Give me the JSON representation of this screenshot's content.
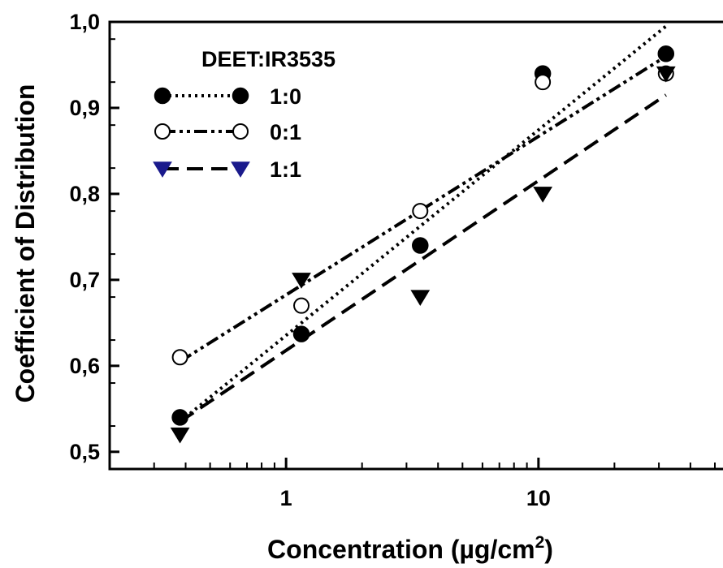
{
  "chart_data": {
    "type": "scatter",
    "xlabel": "Concentration (µg/cm",
    "xlabel_superscript": "2",
    "xlabel_suffix": ")",
    "ylabel": "Coefficient of Distribution",
    "xscale": "log",
    "xlim": [
      0.2,
      50
    ],
    "ylim": [
      0.48,
      1.0
    ],
    "x_tick_labels": [
      {
        "value": 1,
        "label": "1"
      },
      {
        "value": 10,
        "label": "10"
      }
    ],
    "y_tick_labels": [
      {
        "value": 0.5,
        "label": "0,5"
      },
      {
        "value": 0.6,
        "label": "0,6"
      },
      {
        "value": 0.7,
        "label": "0,7"
      },
      {
        "value": 0.8,
        "label": "0,8"
      },
      {
        "value": 0.9,
        "label": "0,9"
      },
      {
        "value": 1.0,
        "label": "1,0"
      }
    ],
    "grid": false,
    "legend": {
      "title": "DEET:IR3535",
      "placement": "top-left"
    },
    "series": [
      {
        "name": "1:0",
        "marker": "filled-circle",
        "line_style": "dotted",
        "color": "#000000",
        "x": [
          0.38,
          1.15,
          3.4,
          10.4,
          32
        ],
        "y": [
          0.54,
          0.637,
          0.74,
          0.94,
          0.963
        ],
        "fit": {
          "x": [
            0.38,
            32
          ],
          "y": [
            0.535,
            0.995
          ]
        }
      },
      {
        "name": "0:1",
        "marker": "open-circle",
        "line_style": "dash-dot-dot",
        "color": "#000000",
        "x": [
          0.38,
          1.15,
          3.4,
          10.4,
          32
        ],
        "y": [
          0.61,
          0.67,
          0.78,
          0.93,
          0.94
        ],
        "fit": {
          "x": [
            0.38,
            32
          ],
          "y": [
            0.605,
            0.96
          ]
        }
      },
      {
        "name": "1:1",
        "marker": "filled-triangle-down",
        "line_style": "dashed",
        "color": "#000000",
        "legend_marker_color": "#1a1a8c",
        "x": [
          0.38,
          1.15,
          3.4,
          10.4,
          32
        ],
        "y": [
          0.52,
          0.7,
          0.68,
          0.8,
          0.94
        ],
        "fit": {
          "x": [
            0.38,
            32
          ],
          "y": [
            0.535,
            0.915
          ]
        }
      }
    ]
  }
}
